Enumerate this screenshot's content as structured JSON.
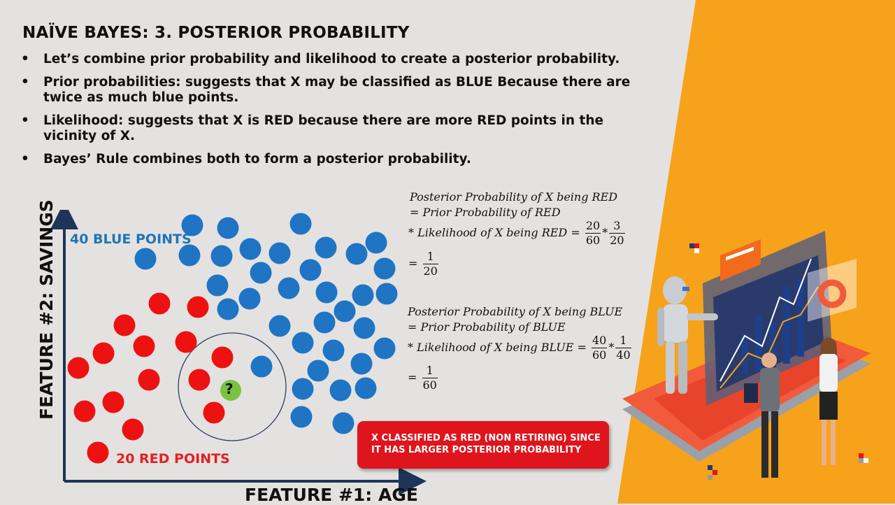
{
  "title": "NAÏVE BAYES: 3. POSTERIOR PROBABILITY",
  "bullet_char": "•",
  "bullets": [
    "Let’s combine prior probability and likelihood to create a posterior probability.",
    "Prior probabilities: suggests that X may be classified as BLUE Because there are twice as much blue points.",
    "Likelihood: suggests that X is RED because there are more RED points in the vicinity of X.",
    "Bayes’ Rule combines both to form a posterior probability."
  ],
  "plot": {
    "y_axis_label": "FEATURE #2: SAVINGS",
    "x_axis_label": "FEATURE #1: AGE",
    "blue_label": "40 BLUE POINTS",
    "red_label": "20 RED POINTS",
    "query_mark": "?",
    "colors": {
      "blue": "#1f74c4",
      "red": "#ee1111",
      "query": "#7cc242"
    }
  },
  "equations": {
    "red": {
      "line1": "Posterior Probability of X being RED",
      "line2": "=  Prior Probability of RED",
      "line3_prefix": "* Likelihood of X being RED =",
      "f1_num": "20",
      "f1_den": "60",
      "times": "*",
      "f2_num": "3",
      "f2_den": "20",
      "result_eq": "=",
      "r_num": "1",
      "r_den": "20"
    },
    "blue": {
      "line1": "Posterior Probability of X being BLUE",
      "line2": "=  Prior Probability of BLUE",
      "line3_prefix": "* Likelihood of X being BLUE =",
      "f1_num": "40",
      "f1_den": "60",
      "times": "*",
      "f2_num": "1",
      "f2_den": "40",
      "result_eq": "=",
      "r_num": "1",
      "r_den": "60"
    }
  },
  "callout": {
    "line1": "X CLASSIFIED AS RED (NON RETIRING) SINCE",
    "line2": "IT HAS LARGER POSTERIOR  PROBABILITY"
  },
  "colors": {
    "orange": "#f7a21b",
    "background": "#e4e2e0",
    "callout": "#e0141c"
  }
}
